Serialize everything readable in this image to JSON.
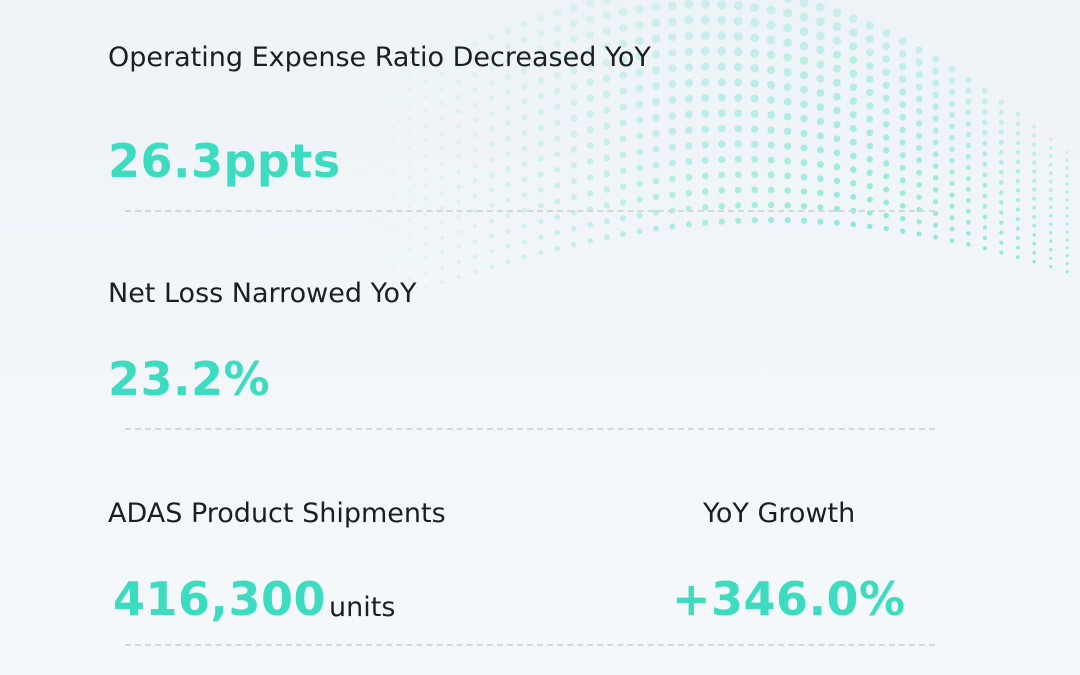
{
  "metrics": [
    {
      "label": "Operating Expense Ratio Decreased YoY",
      "value": "26.3ppts"
    },
    {
      "label": "Net Loss Narrowed YoY",
      "value": "23.2%"
    },
    {
      "label": "ADAS Product Shipments",
      "value": "416,300",
      "unit": "units"
    },
    {
      "label": "YoY Growth",
      "value": "+346.0%"
    }
  ]
}
